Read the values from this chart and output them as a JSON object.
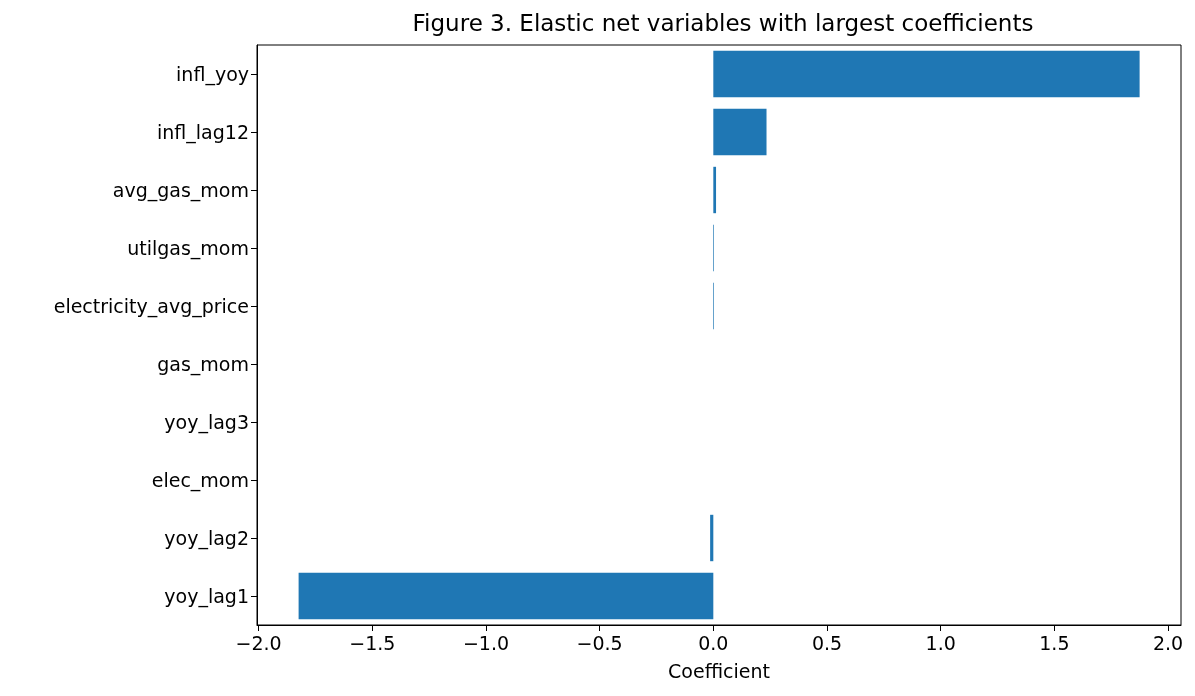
{
  "chart_data": {
    "type": "bar",
    "orientation": "horizontal",
    "title": "Figure 3. Elastic net variables with largest coefficients",
    "xlabel": "Coefficient",
    "categories": [
      "infl_yoy",
      "infl_lag12",
      "avg_gas_mom",
      "utilgas_mom",
      "electricity_avg_price",
      "gas_mom",
      "yoy_lag3",
      "elec_mom",
      "yoy_lag2",
      "yoy_lag1"
    ],
    "values": [
      1.875,
      0.234,
      0.012,
      0.003,
      0.003,
      0,
      0,
      0,
      -0.014,
      -1.824
    ],
    "color": "#1f77b4",
    "xlim": [
      -2.007,
      2.057
    ],
    "xticks": [
      {
        "value": -2,
        "label": "−2.0"
      },
      {
        "value": -1.5,
        "label": "−1.5"
      },
      {
        "value": -1,
        "label": "−1.0"
      },
      {
        "value": -0.5,
        "label": "−0.5"
      },
      {
        "value": 0,
        "label": "0.0"
      },
      {
        "value": 0.5,
        "label": "0.5"
      },
      {
        "value": 1,
        "label": "1.0"
      },
      {
        "value": 1.5,
        "label": "1.5"
      },
      {
        "value": 2,
        "label": "2.0"
      }
    ],
    "grid": false
  }
}
